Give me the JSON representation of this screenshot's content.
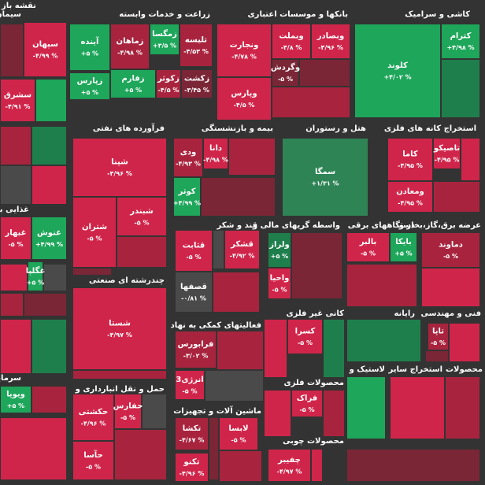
{
  "header": {
    "title": "نقشه باز"
  },
  "sectors": [
    {
      "title": "سیمان",
      "tiles": [
        {
          "name": "سپهان",
          "change": "-۴/۹۹ %"
        },
        {
          "name": "سشرق",
          "change": "-۴/۹۱ %"
        }
      ]
    },
    {
      "title": "زراعت و خدمات وابسته",
      "tiles": [
        {
          "name": "آینده",
          "change": "+۵ %"
        },
        {
          "name": "زماهان",
          "change": "-۴/۹۸ %"
        },
        {
          "name": "زمگسا",
          "change": "+۳/۵ %"
        },
        {
          "name": "تلیسه",
          "change": "-۴/۵۳ %"
        },
        {
          "name": "زپارس",
          "change": "+۵ %"
        },
        {
          "name": "زفارم",
          "change": "+۵ %"
        },
        {
          "name": "زکوثر",
          "change": "-۴/۵ %"
        },
        {
          "name": "زکشت",
          "change": "-۳/۴۵ %"
        }
      ]
    },
    {
      "title": "بانکها و موسسات اعتباری",
      "tiles": [
        {
          "name": "ونجارت",
          "change": "-۴/۷۸ %"
        },
        {
          "name": "وبملت",
          "change": "-۴/۸ %"
        },
        {
          "name": "وبصادر",
          "change": "-۴/۹۶ %"
        },
        {
          "name": "وگردش",
          "change": "-۵ %"
        },
        {
          "name": "وپارس",
          "change": "-۴/۵ %"
        }
      ]
    },
    {
      "title": "کاشی و سرامیک",
      "tiles": [
        {
          "name": "کلوند",
          "change": "+۴/۰۲ %"
        },
        {
          "name": "کترام",
          "change": "+۴/۹۸ %"
        }
      ]
    },
    {
      "title": "فرآورده های نفتی",
      "tiles": [
        {
          "name": "شپنا",
          "change": "-۴/۹۶ %"
        },
        {
          "name": "شبندر",
          "change": "-۵ %"
        },
        {
          "name": "شتران",
          "change": "-۵ %"
        }
      ]
    },
    {
      "title": "بیمه و بازنشستگی",
      "tiles": [
        {
          "name": "ودی",
          "change": "-۴/۹۳ %"
        },
        {
          "name": "دانا",
          "change": "-۴/۹۸ %"
        },
        {
          "name": "کوثر",
          "change": "+۴/۹۹ %"
        }
      ]
    },
    {
      "title": "هتل و رستوران",
      "tiles": [
        {
          "name": "سمگا",
          "change": "+۱/۳۱ %"
        }
      ]
    },
    {
      "title": "استخراج کانه های فلزی",
      "tiles": [
        {
          "name": "کاما",
          "change": "-۴/۹۵ %"
        },
        {
          "name": "تاصیکو",
          "change": "-۴/۹۵ %"
        },
        {
          "name": "ومعادن",
          "change": "-۴/۹۵ %"
        }
      ]
    },
    {
      "title": "غذایی بجز",
      "tiles": [
        {
          "name": "غبهار",
          "change": "-۵ %"
        },
        {
          "name": "غنوش",
          "change": "+۴/۹۹ %"
        },
        {
          "name": "غگلپا",
          "change": "+۵ %"
        }
      ]
    },
    {
      "title": "قند و شکر",
      "tiles": [
        {
          "name": "قثابت",
          "change": "-۵ %"
        },
        {
          "name": "قشکر",
          "change": "-۴/۹۲ %"
        },
        {
          "name": "قصفها",
          "change": "-۰/۸۱ %"
        }
      ]
    },
    {
      "title": "واسطه گریهای مالی و",
      "tiles": [
        {
          "name": "ولراز",
          "change": "+۵ %"
        },
        {
          "name": "واحیا",
          "change": "-۵ %"
        }
      ]
    },
    {
      "title": "دستگاههای برقی",
      "tiles": [
        {
          "name": "بالبر",
          "change": "-۵ %"
        },
        {
          "name": "بایکا",
          "change": "+۵ %"
        }
      ]
    },
    {
      "title": "عرضه برق،گاز،بخار و",
      "tiles": [
        {
          "name": "دماوند",
          "change": "-۵ %"
        }
      ]
    },
    {
      "title": "چندرشته ای صنعتی",
      "tiles": [
        {
          "name": "شستا",
          "change": "-۴/۹۷ %"
        }
      ]
    },
    {
      "title": "فعالیتهای کمکی به نهاد",
      "tiles": [
        {
          "name": "فرابورس",
          "change": "-۳/۰۲ %"
        },
        {
          "name": "انرژی3",
          "change": "-۵ %"
        }
      ]
    },
    {
      "title": "کانی غیر فلزی",
      "tiles": [
        {
          "name": "کسرا",
          "change": "-۵ %"
        }
      ]
    },
    {
      "title": "رایانه",
      "tiles": []
    },
    {
      "title": "فنی و مهندسی",
      "tiles": [
        {
          "name": "تاپا",
          "change": "-۵ %"
        }
      ]
    },
    {
      "title": "محصولات فلزی",
      "tiles": [
        {
          "name": "فراک",
          "change": "-۵ %"
        }
      ]
    },
    {
      "title": "لاستیک و",
      "tiles": []
    },
    {
      "title": "استخراج سایر",
      "tiles": []
    },
    {
      "title": "محصولات",
      "tiles": []
    },
    {
      "title": "حمل و نقل انبارداری و",
      "tiles": [
        {
          "name": "حکشتی",
          "change": "-۴/۹۶ %"
        },
        {
          "name": "حفارس",
          "change": "-۵ %"
        },
        {
          "name": "حآسا",
          "change": "-۵ %"
        }
      ]
    },
    {
      "title": "ماشین آلات و تجهیزات",
      "tiles": [
        {
          "name": "تکشا",
          "change": "-۴/۶۷ %"
        },
        {
          "name": "لابسا",
          "change": "-۵ %"
        },
        {
          "name": "تکنو",
          "change": "-۴/۹۶ %"
        }
      ]
    },
    {
      "title": "محصولات چوبی",
      "tiles": [
        {
          "name": "چفیبر",
          "change": "-۴/۹۷ %"
        }
      ]
    },
    {
      "title": "سرمایه",
      "tiles": [
        {
          "name": "ویوپا",
          "change": "+۵ %"
        }
      ]
    }
  ]
}
